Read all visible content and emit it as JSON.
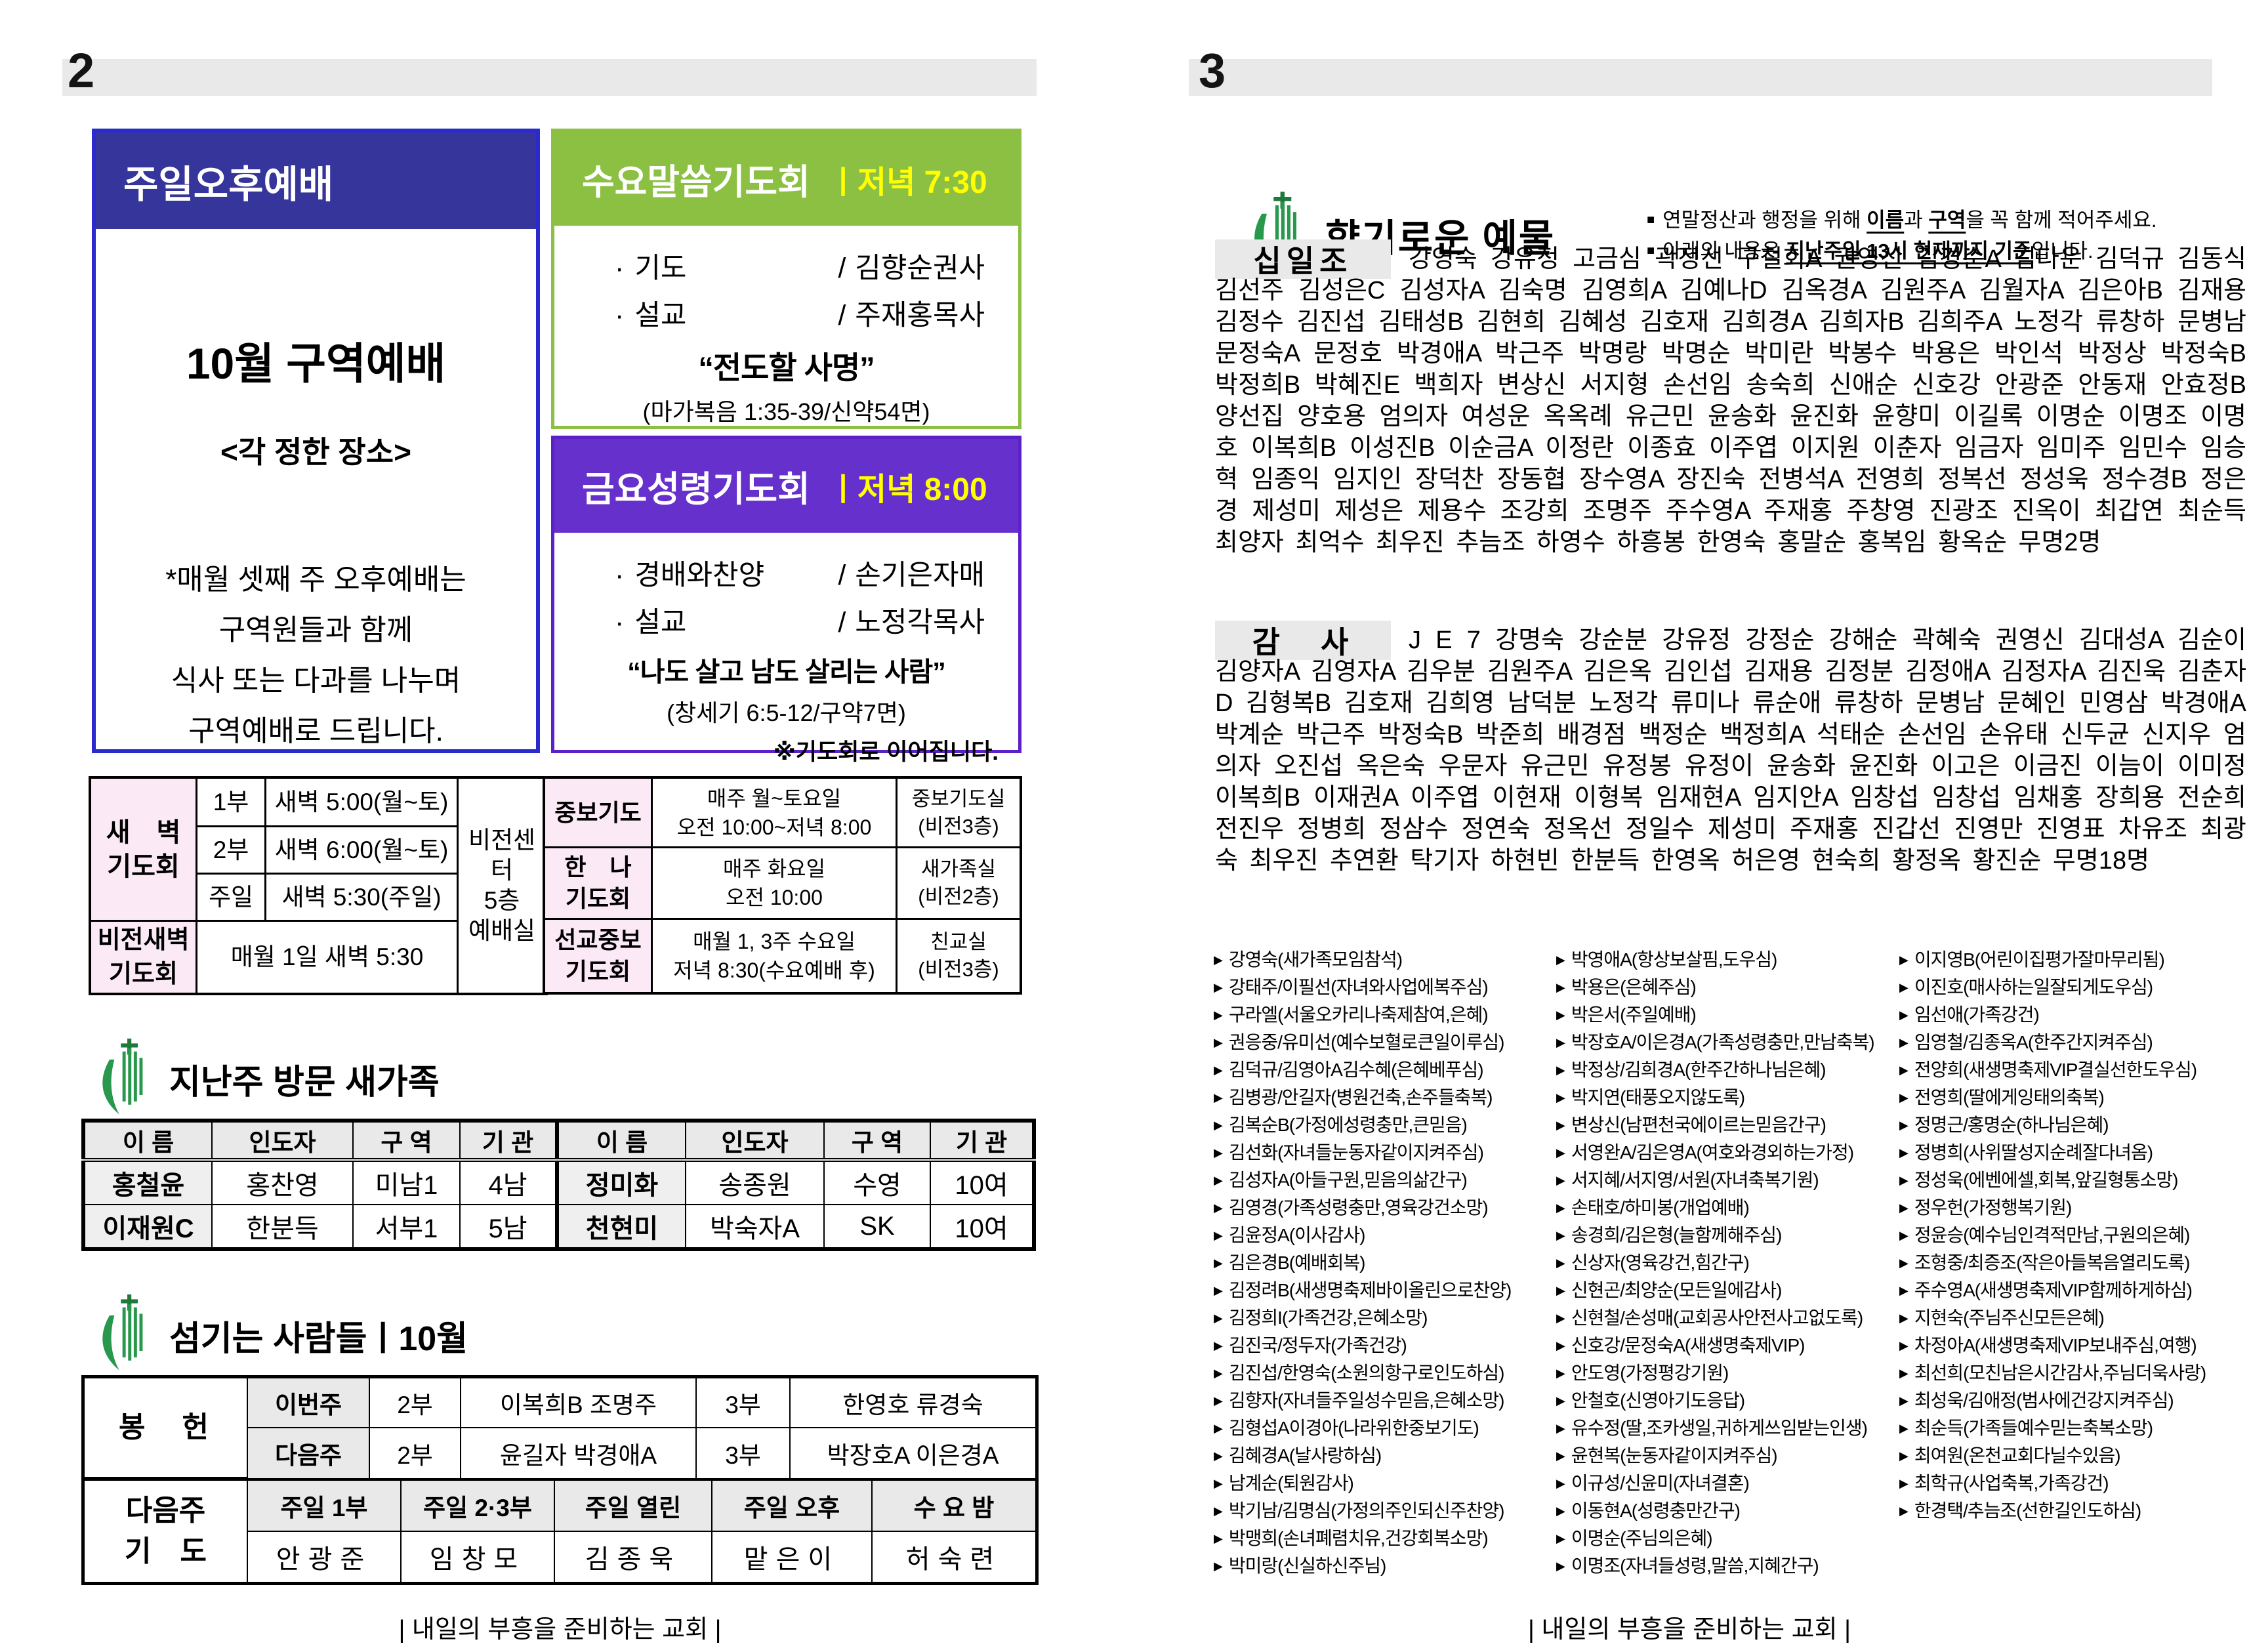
{
  "colors": {
    "header_bar_gray": "#e9e9e9",
    "blue_title": "#35359b",
    "blue_border": "#2a2ace",
    "green_title": "#8cc043",
    "purple_title": "#6630cc",
    "time_yellow": "#ffff00",
    "pink_cell": "#fbeaf6",
    "logo_green": "#27984c"
  },
  "page_left": {
    "page_number": "2",
    "footer": "| 내일의 부흥을 준비하는 교회 |",
    "afternoon": {
      "title": "주일오후예배",
      "heading": "10월 구역예배",
      "subheading": "<각 정한 장소>",
      "notes": [
        "*매월 셋째 주 오후예배는",
        "구역원들과 함께",
        "식사 또는 다과를 나누며",
        "구역예배로 드립니다."
      ]
    },
    "wednesday": {
      "title": "수요말씀기도회",
      "time": "ㅣ저녁 7:30",
      "items": [
        {
          "role": "기도",
          "name": "김향순권사"
        },
        {
          "role": "설교",
          "name": "주재홍목사"
        }
      ],
      "sermon": "“전도할 사명”",
      "scripture": "(마가복음 1:35-39/신약54면)",
      "note": "※기도회로 이어집니다."
    },
    "friday": {
      "title": "금요성령기도회",
      "time": "ㅣ저녁 8:00",
      "items": [
        {
          "role": "경배와찬양",
          "name": "손기은자매"
        },
        {
          "role": "설교",
          "name": "노정각목사"
        }
      ],
      "sermon": "“나도 살고 남도 살리는 사람”",
      "scripture": "(창세기 6:5-12/구약7면)",
      "note": "※기도회로 이어집니다."
    },
    "dawn": {
      "label": "새　벽\n기도회",
      "rows": [
        {
          "part": "1부",
          "time": "새벽 5:00(월~토)"
        },
        {
          "part": "2부",
          "time": "새벽 6:00(월~토)"
        },
        {
          "part": "주일",
          "time": "새벽 5:30(주일)"
        }
      ],
      "vision_label": "비전새벽\n기도회",
      "vision_time": "매월 1일 새벽 5:30",
      "location": "비전센터\n5층\n예배실"
    },
    "weekly": {
      "rows": [
        {
          "label": "중보기도",
          "schedule": "매주 월~토요일\n오전 10:00~저녁 8:00",
          "room": "중보기도실\n(비전3층)"
        },
        {
          "label": "한　나\n기도회",
          "schedule": "매주 화요일\n오전 10:00",
          "room": "새가족실\n(비전2층)"
        },
        {
          "label": "선교중보\n기도회",
          "schedule": "매월 1, 3주 수요일\n저녁 8:30(수요예배 후)",
          "room": "친교실\n(비전3층)"
        }
      ]
    },
    "newcomers": {
      "title": "지난주 방문 새가족",
      "headers": [
        "이 름",
        "인도자",
        "구 역",
        "기 관",
        "이 름",
        "인도자",
        "구 역",
        "기 관"
      ],
      "rows": [
        [
          "홍철윤",
          "홍찬영",
          "미남1",
          "4남",
          "정미화",
          "송종원",
          "수영",
          "10여"
        ],
        [
          "이재원C",
          "한분득",
          "서부1",
          "5남",
          "천현미",
          "박숙자A",
          "SK",
          "10여"
        ]
      ]
    },
    "servants": {
      "title": "섬기는 사람들ㅣ10월",
      "offering_label": "봉　헌",
      "offering_rows": [
        {
          "week": "이번주",
          "p2": "2부",
          "n2": "이복희B 조명주",
          "p3": "3부",
          "n3": "한영호 류경숙"
        },
        {
          "week": "다음주",
          "p2": "2부",
          "n2": "윤길자 박경애A",
          "p3": "3부",
          "n3": "박장호A 이은경A"
        }
      ],
      "prayer_label": "다음주\n기　도",
      "prayer_headers": [
        "주일 1부",
        "주일 2·3부",
        "주일 열린",
        "주일 오후",
        "수 요 밤"
      ],
      "prayer_names": [
        "안광준",
        "임창모",
        "김종욱",
        "맡은이",
        "허숙련"
      ]
    }
  },
  "page_right": {
    "page_number": "3",
    "footer": "| 내일의 부흥을 준비하는 교회 |",
    "title": "향기로운 예물",
    "note1": {
      "t1": "연말정산과 행정을 위해 ",
      "u1": "이름",
      "t2": "과 ",
      "u2": "구역",
      "t3": "을 꼭 함께 적어주세요."
    },
    "note2": {
      "t1": "아래의 내용은 ",
      "u1": "지난주일 13시 현재까지 기준",
      "t2": "입니다."
    },
    "tithe": {
      "label": "십일조",
      "names": "강영숙 강유정 고금심 곽정선 구철회A 권영신 김경순A 김다운 김덕규 김동식 김선주 김성은C 김성자A 김숙명 김영희A 김예나D 김옥경A 김원주A 김월자A 김은아B 김재용 김정수 김진섭 김태성B 김현희 김혜성 김호재 김희경A 김희자B 김희주A 노정각 류창하 문병남 문정숙A 문정호 박경애A 박근주 박명랑 박명순 박미란 박봉수 박용은 박인석 박정상 박정숙B 박정희B 박혜진E 백희자 변상신 서지형 손선임 송숙희 신애순 신호강 안광준 안동재 안효정B 양선집 양호용 엄의자 여성운 옥옥례 유근민 윤송화 윤진화 윤향미 이길록 이명순 이명조 이명호 이복희B 이성진B 이순금A 이정란 이종효 이주엽 이지원 이춘자 임금자 임미주 임민수 임승혁 임종익 임지인 장덕찬 장동협 장수영A 장진숙 전병석A 전영희 정복선 정성욱 정수경B 정은경 제성미 제성은 제용수 조강희 조명주 주수영A 주재홍 주창영 진광조 진옥이 최갑연 최순득 최양자 최억수 최우진 추늠조 하영수 하흥봉 한영숙 홍말순 홍복임 황옥순 무명2명"
    },
    "thanks": {
      "label": "감　사",
      "names": "J E 7 강명숙 강순분 강유정 강정순 강해순 곽혜숙 권영신 김대성A 김순이 김양자A 김영자A 김우분 김원주A 김은옥 김인섭 김재용 김정분 김정애A 김정자A 김진욱 김춘자D 김형복B 김호재 김희영 남덕분 노정각 류미나 류순애 류창하 문병남 문혜인 민영삼 박경애A 박계순 박근주 박정숙B 박준희 배경점 백정순 백정희A 석태순 손선임 손유태 신두균 신지우 엄의자 오진섭 옥은숙 우문자 유근민 유정봉 유정이 윤송화 윤진화 이고은 이금진 이늠이 이미정 이복희B 이재권A 이주엽 이현재 이형복 임재현A 임지안A 임창섭 임창섭 임채홍 장희용 전순희 전진우 정병희 정삼수 정연숙 정옥선 정일수 제성미 주재홍 진갑선 진영만 진영표 차유조 최광숙 최우진 추연환 탁기자 하현빈 한분득 한영옥 허은영 현숙희 황정옥 황진순 무명18명"
    },
    "prayers": {
      "col1": [
        "강영숙(새가족모임참석)",
        "강태주/이필선(자녀와사업에복주심)",
        "구라엘(서울오카리나축제참여,은혜)",
        "권응중/유미선(예수보혈로큰일이루심)",
        "김덕규/김영아A김수혜(은혜베푸심)",
        "김병광/안길자(병원건축,손주들축복)",
        "김복순B(가정에성령충만,큰믿음)",
        "김선화(자녀들눈동자같이지켜주심)",
        "김성자A(아들구원,믿음의삶간구)",
        "김영경(가족성령충만,영육강건소망)",
        "김윤정A(이사감사)",
        "김은경B(예배회복)",
        "김정려B(새생명축제바이올린으로찬양)",
        "김정희I(가족건강,은혜소망)",
        "김진국/정두자(가족건강)",
        "김진섭/한영숙(소원의항구로인도하심)",
        "김향자(자녀들주일성수믿음,은혜소망)",
        "김형섭A이경아(나라위한중보기도)",
        "김혜경A(날사랑하심)",
        "남계순(퇴원감사)",
        "박기남/김명심(가정의주인되신주찬양)",
        "박맹희(손녀폐렴치유,건강회복소망)",
        "박미랑(신실하신주님)"
      ],
      "col2": [
        "박영애A(항상보살핌,도우심)",
        "박용은(은혜주심)",
        "박은서(주일예배)",
        "박장호A/이은경A(가족성령충만,만남축복)",
        "박정상/김희경A(한주간하나님은혜)",
        "박지연(태풍오지않도록)",
        "변상신(남편천국에이르는믿음간구)",
        "서영완A/김은영A(여호와경외하는가정)",
        "서지혜/서지영/서원(자녀축복기원)",
        "손태호/하미봉(개업예배)",
        "송경희/김은형(늘함께해주심)",
        "신상자(영육강건,힘간구)",
        "신현곤/최양순(모든일에감사)",
        "신현철/손성매(교회공사안전사고없도록)",
        "신호강/문정숙A(새생명축제VIP)",
        "안도영(가정평강기원)",
        "안철호(신영아기도응답)",
        "유수정(딸,조카생일,귀하게쓰임받는인생)",
        "윤현복(눈동자같이지켜주심)",
        "이규성/신윤미(자녀결혼)",
        "이동현A(성령충만간구)",
        "이명순(주님의은혜)",
        "이명조(자녀들성령,말씀,지혜간구)"
      ],
      "col3": [
        "이지영B(어린이집평가잘마무리됨)",
        "이진호(매사하는일잘되게도우심)",
        "임선애(가족강건)",
        "임영철/김종옥A(한주간지켜주심)",
        "전양희(새생명축제VIP결실선한도우심)",
        "전영희(딸에게잉태의축복)",
        "정명근/홍명순(하나님은혜)",
        "정병희(사위딸성지순례잘다녀옴)",
        "정성욱(에벤에셀,회복,앞길형통소망)",
        "정우헌(가정행복기원)",
        "정윤승(예수님인격적만남,구원의은혜)",
        "조형중/최증조(작은아들복음열리도록)",
        "주수영A(새생명축제VIP함께하게하심)",
        "지현숙(주님주신모든은혜)",
        "차정아A(새생명축제VIP보내주심,여행)",
        "최선희(모친남은시간감사,주님더욱사랑)",
        "최성욱/김애정(범사에건강지켜주심)",
        "최순득(가족들예수믿는축복소망)",
        "최여원(온천교회다닐수있음)",
        "최학규(사업축복,가족강건)",
        "한경택/추늠조(선한길인도하심)"
      ]
    }
  }
}
